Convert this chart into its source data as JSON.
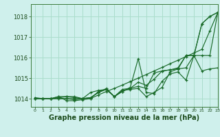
{
  "xlabel": "Graphe pression niveau de la mer (hPa)",
  "background_color": "#cff0ec",
  "grid_color": "#aaddcc",
  "line_color": "#1a6b2a",
  "ylim": [
    1013.6,
    1018.6
  ],
  "xlim": [
    -0.5,
    23
  ],
  "yticks": [
    1014,
    1015,
    1016,
    1017,
    1018
  ],
  "xticks": [
    0,
    1,
    2,
    3,
    4,
    5,
    6,
    7,
    8,
    9,
    10,
    11,
    12,
    13,
    14,
    15,
    16,
    17,
    18,
    19,
    20,
    21,
    22,
    23
  ],
  "series": [
    [
      1014.0,
      1014.0,
      1014.0,
      1014.1,
      1014.1,
      1014.05,
      1014.0,
      1014.05,
      1014.3,
      1014.5,
      1014.1,
      1014.4,
      1014.45,
      1014.5,
      1014.1,
      1014.3,
      1014.55,
      1015.3,
      1015.45,
      1015.5,
      1016.1,
      1015.35,
      1015.45,
      1015.5
    ],
    [
      1014.0,
      1014.0,
      1014.0,
      1014.1,
      1013.9,
      1013.9,
      1013.95,
      1014.0,
      1014.35,
      1014.45,
      1014.1,
      1014.35,
      1014.55,
      1015.95,
      1014.3,
      1014.25,
      1014.85,
      1015.2,
      1015.3,
      1014.9,
      1016.1,
      1017.65,
      1018.0,
      1018.2
    ],
    [
      1014.0,
      1014.0,
      1014.0,
      1014.05,
      1014.1,
      1014.1,
      1014.0,
      1014.3,
      1014.4,
      1014.45,
      1014.1,
      1014.45,
      1014.5,
      1014.8,
      1014.65,
      1014.95,
      1015.35,
      1015.4,
      1015.45,
      1016.1,
      1016.1,
      1017.65,
      1018.0,
      1018.2
    ],
    [
      1014.05,
      1014.0,
      1014.0,
      1014.0,
      1014.0,
      1013.95,
      1014.0,
      1014.05,
      1014.3,
      1014.45,
      1014.1,
      1014.35,
      1014.5,
      1014.6,
      1014.5,
      1015.25,
      1015.35,
      1015.4,
      1015.5,
      1016.1,
      1016.1,
      1016.1,
      1016.1,
      1018.2
    ],
    [
      1014.0,
      1014.0,
      1014.0,
      1014.0,
      1014.0,
      1014.0,
      1014.0,
      1014.0,
      1014.18,
      1014.35,
      1014.5,
      1014.66,
      1014.83,
      1015.0,
      1015.17,
      1015.35,
      1015.52,
      1015.7,
      1015.87,
      1016.05,
      1016.22,
      1016.4,
      1017.3,
      1018.2
    ]
  ]
}
